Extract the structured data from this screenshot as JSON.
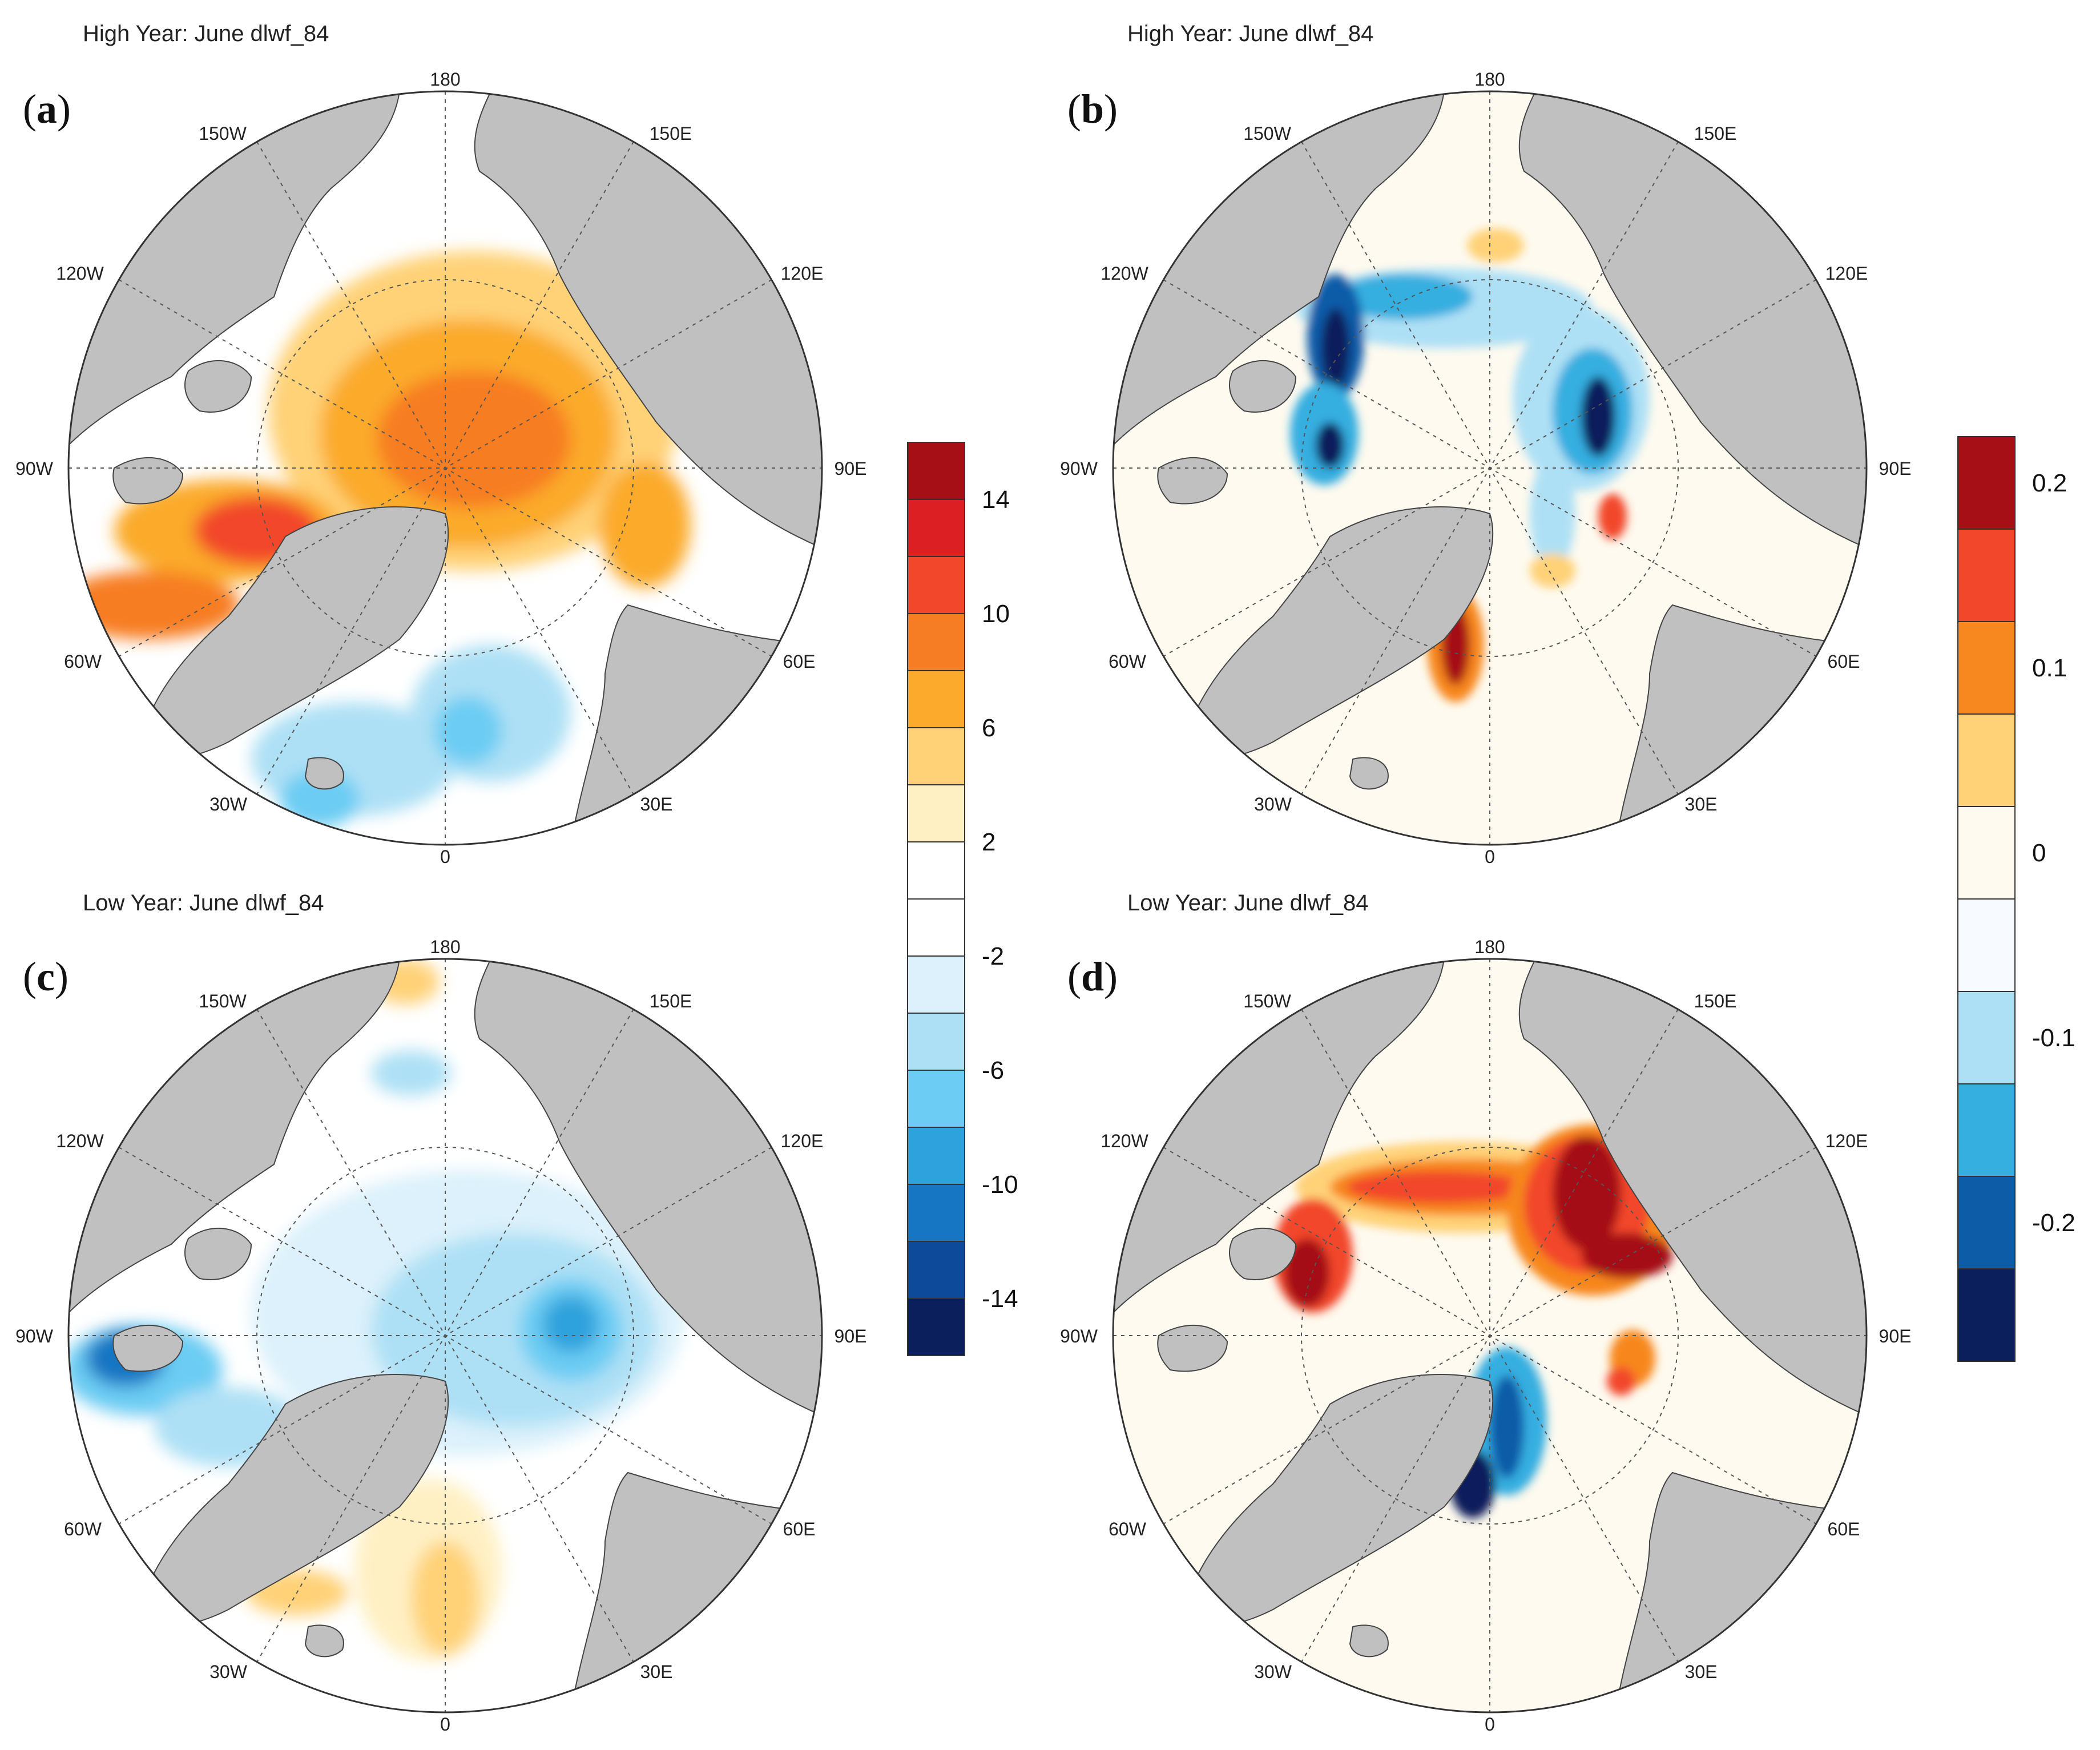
{
  "figure": {
    "panels": [
      {
        "id": "a",
        "letter": "a",
        "title": "High Year: June dlwf_84",
        "colorbar": "cb1",
        "pattern": "high_abs"
      },
      {
        "id": "b",
        "letter": "b",
        "title": "High Year: June dlwf_84",
        "colorbar": "cb2",
        "pattern": "high_rel"
      },
      {
        "id": "c",
        "letter": "c",
        "title": "Low Year: June dlwf_84",
        "colorbar": "cb1",
        "pattern": "low_abs"
      },
      {
        "id": "d",
        "letter": "d",
        "title": "Low Year: June dlwf_84",
        "colorbar": "cb2",
        "pattern": "low_rel"
      }
    ],
    "longitude_labels": [
      "180",
      "150E",
      "120E",
      "90E",
      "60E",
      "30E",
      "0",
      "30W",
      "60W",
      "90W",
      "120W",
      "150W"
    ]
  },
  "colorbars": {
    "cb1": {
      "colors": [
        "#0a1f5c",
        "#0d4a9a",
        "#1676c3",
        "#2ea2dc",
        "#6cccf3",
        "#aee0f5",
        "#dcf1fb",
        "#ffffff",
        "#ffffff",
        "#fff0c4",
        "#ffd278",
        "#fbaa2c",
        "#f77d24",
        "#f2472a",
        "#db1f22",
        "#a50f15"
      ],
      "tick_labels": [
        "-14",
        "-10",
        "-6",
        "-2",
        "2",
        "6",
        "10",
        "14"
      ],
      "tick_boundaries": [
        1,
        3,
        5,
        7,
        9,
        11,
        13,
        15
      ]
    },
    "cb2": {
      "colors": [
        "#0a1f5c",
        "#0d5ca8",
        "#35aee0",
        "#aee0f5",
        "#f7fbff",
        "#fefaef",
        "#ffd278",
        "#f7871f",
        "#f2472a",
        "#a50f15"
      ],
      "tick_labels": [
        "-0.2",
        "-0.1",
        "0",
        "0.1",
        "0.2"
      ],
      "tick_centers": [
        1,
        3,
        5,
        7,
        9
      ]
    }
  }
}
